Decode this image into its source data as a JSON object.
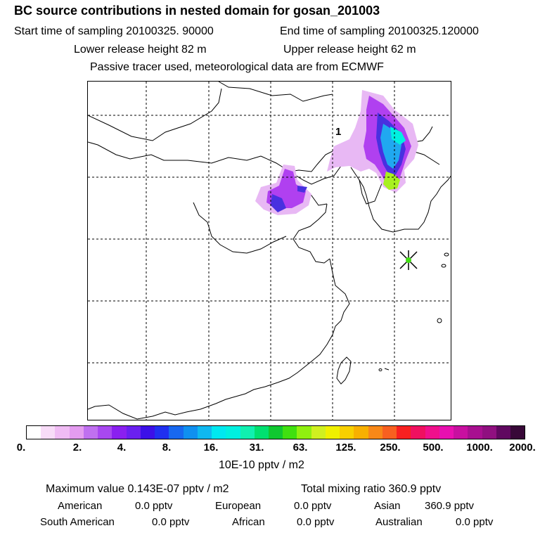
{
  "header": {
    "title": "BC  source contributions in nested domain for gosan_201003",
    "start_time": "Start time of sampling 20100325. 90000",
    "end_time": "End time of sampling 20100325.120000",
    "lower_release": "Lower release height   82 m",
    "upper_release": "Upper release height   62 m",
    "tracer_note": "Passive tracer used, meteorological data are from ECMWF"
  },
  "map": {
    "site_label": "1",
    "marker_icon": "star-marker-icon",
    "plume_colors": [
      "#e8b8f4",
      "#b040f0",
      "#4830e0",
      "#20a8f0",
      "#00f0e0",
      "#a8f020"
    ]
  },
  "colorbar": {
    "colors": [
      "#ffffff",
      "#f8dcf8",
      "#f0bcf4",
      "#e49cf0",
      "#c070f0",
      "#a848f0",
      "#8a20f0",
      "#6a20f0",
      "#3c10e8",
      "#2030f0",
      "#1868f0",
      "#1090f0",
      "#10b8f0",
      "#00e8f0",
      "#00f0e0",
      "#10f0b0",
      "#00e070",
      "#10c830",
      "#40e010",
      "#90f010",
      "#d0f020",
      "#f0f000",
      "#f8d000",
      "#f8b000",
      "#f88818",
      "#f86020",
      "#f82020",
      "#f01060",
      "#f0108c",
      "#e810b0",
      "#c810a0",
      "#a81090",
      "#901080",
      "#600860",
      "#380838"
    ],
    "tick_labels": [
      "0.",
      "2.",
      "4.",
      "8.",
      "16.",
      "31.",
      "63.",
      "125.",
      "250.",
      "500.",
      "1000.",
      "2000."
    ],
    "unit_label": "10E-10 pptv / m2"
  },
  "summary": {
    "max_value": "Maximum value  0.143E-07 pptv / m2",
    "total_mixing": "Total mixing ratio      360.9 pptv",
    "regions": [
      {
        "name": "American",
        "value": "0.0 pptv"
      },
      {
        "name": "European",
        "value": "0.0 pptv"
      },
      {
        "name": "Asian",
        "value": "360.9 pptv"
      },
      {
        "name": "South American",
        "value": "0.0 pptv"
      },
      {
        "name": "African",
        "value": "0.0 pptv"
      },
      {
        "name": "Australian",
        "value": "0.0 pptv"
      }
    ]
  }
}
